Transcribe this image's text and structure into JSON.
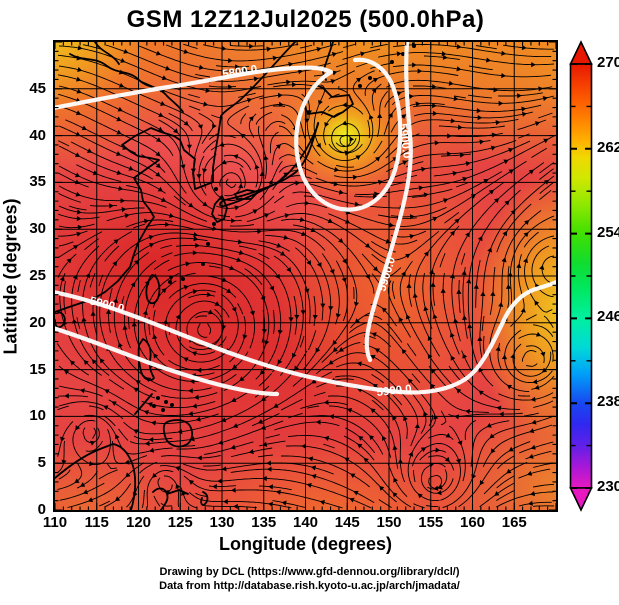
{
  "title": "GSM 12Z12Jul2025 (500.0hPa)",
  "credits": {
    "line1": "Drawing by DCL (https://www.gfd-dennou.org/library/dcl/)",
    "line2": "Data from http://database.rish.kyoto-u.ac.jp/arch/jmadata/"
  },
  "colors": {
    "field_base": "#e64343",
    "cold_low_fill": "#eef01e",
    "streamline": "#000000",
    "contour": "#ffffff",
    "coastline": "#000000",
    "colorbar_top": "#e81800",
    "colorbar_bottom": "#e818c0"
  },
  "chart_data": {
    "type": "heatmap",
    "title": "GSM 12Z12Jul2025 (500.0hPa)",
    "xlabel": "Longitude (degrees)",
    "ylabel": "Latitude (degrees)",
    "xlim": [
      110,
      170
    ],
    "ylim": [
      0,
      50
    ],
    "xticks": [
      110,
      115,
      120,
      125,
      130,
      135,
      140,
      145,
      150,
      155,
      160,
      165
    ],
    "yticks": [
      0,
      5,
      10,
      15,
      20,
      25,
      30,
      35,
      40,
      45
    ],
    "grid": true,
    "field": "500 hPa temperature (K), color shaded; black streamlines with arrows; white geopotential height contours",
    "colorbar": {
      "min": 230,
      "max": 270,
      "ticks": [
        270,
        262,
        254,
        246,
        238,
        230
      ],
      "minor_ticks": [
        266,
        258,
        250,
        242,
        234
      ],
      "scale": [
        {
          "value": 230,
          "color": "#e818c0"
        },
        {
          "value": 238,
          "color": "#1848f0"
        },
        {
          "value": 246,
          "color": "#00f0a0"
        },
        {
          "value": 254,
          "color": "#10dc30"
        },
        {
          "value": 262,
          "color": "#ffb000"
        },
        {
          "value": 270,
          "color": "#e81800"
        }
      ]
    },
    "contours": {
      "variable": "geopotential height (m)",
      "levels": [
        5800,
        5900
      ],
      "labels": [
        "5800.0",
        "5900.0",
        "5900.0",
        "5900.0",
        "5900.0"
      ],
      "color": "#ffffff"
    },
    "streamlines": {
      "color": "#000000",
      "style": "arrows"
    },
    "notable_features": [
      {
        "name": "cold-core low (yellow, ~260 K)",
        "approx_lon": 147,
        "approx_lat": 41
      },
      {
        "name": "subtropical high circulation",
        "approx_lon": 128,
        "approx_lat": 20
      }
    ]
  }
}
